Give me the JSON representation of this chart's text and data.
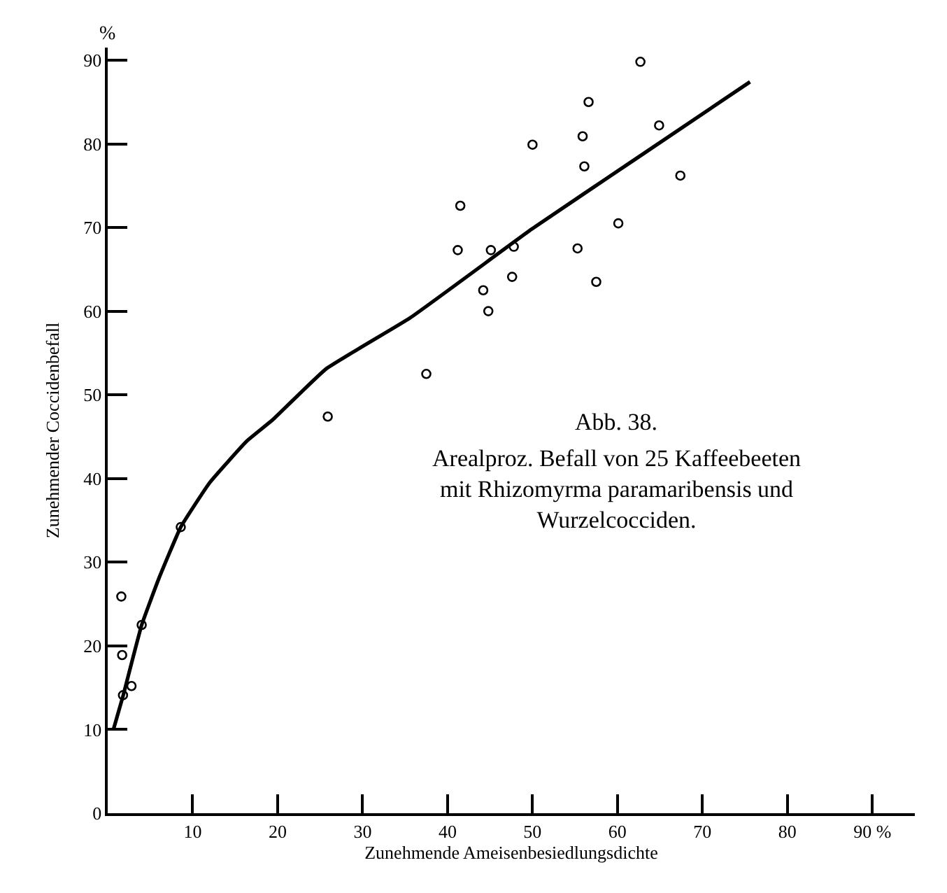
{
  "chart_data": {
    "type": "scatter",
    "xlabel": "Zunehmende Ameisenbesiedlungsdichte",
    "ylabel": "Zunehmender Coccidenbefall",
    "annotations": [
      "%",
      "Abb. 38.",
      "Arealproz. Befall von 25 Kaffeebeeten\nmit Rhizomyrma paramaribensis und\nWurzelcocciden."
    ],
    "series": [
      {
        "color": "#000000",
        "marker": "circle",
        "x": [
          1.6,
          1.7,
          1.8,
          2.8,
          4.0,
          8.6,
          25.9,
          37.5,
          41.2,
          41.5,
          44.2,
          44.8,
          45.1,
          47.6,
          47.8,
          50.0,
          55.3,
          55.9,
          56.1,
          56.6,
          57.5,
          60.1,
          62.7,
          64.9,
          67.4
        ],
        "values": [
          25.9,
          18.9,
          14.1,
          15.2,
          22.5,
          34.2,
          47.4,
          52.5,
          67.3,
          72.6,
          62.5,
          60.0,
          67.3,
          64.1,
          67.7,
          79.9,
          67.5,
          80.9,
          77.3,
          85.0,
          63.5,
          70.5,
          89.8,
          82.2,
          76.2
        ]
      },
      {
        "type": "line",
        "color": "#000000",
        "marker": "none",
        "line_style": "solid",
        "x": [
          0.7,
          1.8,
          4.0,
          6.0,
          8.6,
          12.0,
          16.4,
          19.4,
          25.7,
          35.6,
          49.9,
          62.0,
          75.6
        ],
        "values": [
          10.1,
          14.0,
          22.5,
          28.0,
          34.2,
          39.5,
          44.5,
          47.0,
          53.1,
          59.2,
          69.8,
          78.1,
          87.4
        ]
      }
    ],
    "xlim": [
      0,
      95
    ],
    "ylim": [
      0,
      91.5
    ],
    "xticks": [
      10,
      20,
      30,
      40,
      50,
      60,
      70,
      80,
      {
        "value": 90,
        "label": "90 %"
      }
    ],
    "yticks": [
      0,
      10,
      20,
      30,
      40,
      50,
      60,
      70,
      80,
      90
    ]
  }
}
